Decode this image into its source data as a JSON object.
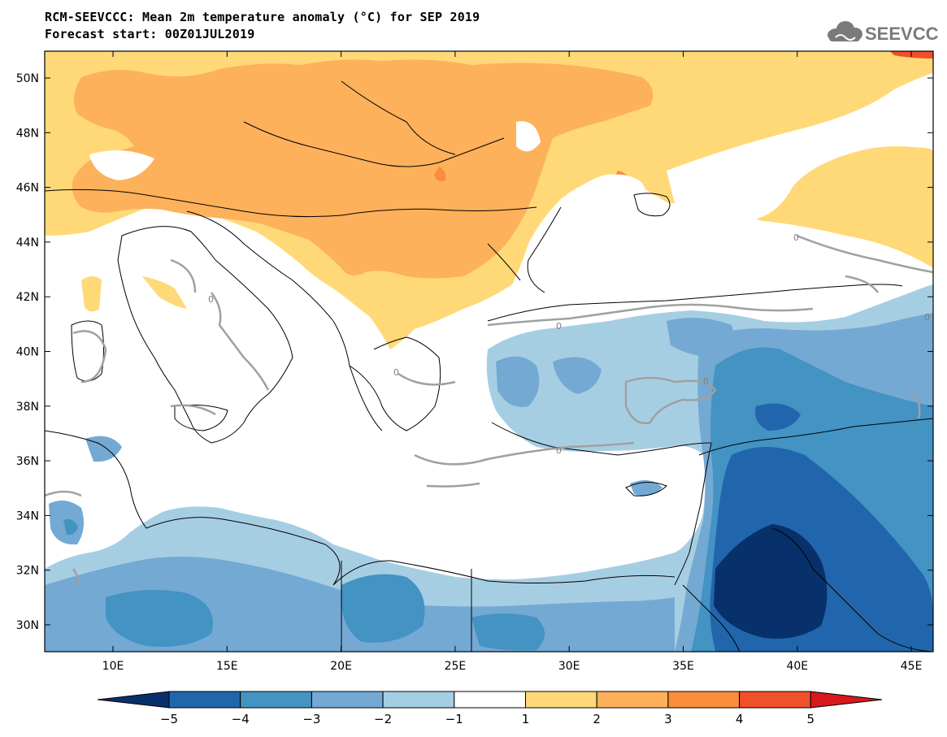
{
  "header": {
    "title": "RCM-SEEVCCC: Mean 2m temperature anomaly (°C) for SEP 2019",
    "subtitle": "Forecast start: 00Z01JUL2019"
  },
  "logo": {
    "text": "SEEVCCC",
    "icon": "cloud-icon"
  },
  "map": {
    "lat_ticks": [
      "50N",
      "48N",
      "46N",
      "44N",
      "42N",
      "40N",
      "38N",
      "36N",
      "34N",
      "32N",
      "30N"
    ],
    "lon_ticks": [
      "10E",
      "15E",
      "20E",
      "25E",
      "30E",
      "35E",
      "40E",
      "45E"
    ],
    "contour_label": "0"
  },
  "legend": {
    "colors": [
      "#08306b",
      "#2166ac",
      "#4393c3",
      "#74a9d4",
      "#a6cee3",
      "#ffffff",
      "#ffd978",
      "#fdb15a",
      "#fb8c3c",
      "#f0502a",
      "#d7191c"
    ],
    "labels": [
      "−5",
      "−4",
      "−3",
      "−2",
      "−1",
      "1",
      "2",
      "3",
      "4",
      "5"
    ]
  },
  "colors": {
    "warm_1": "#ffd978",
    "warm_2": "#fdb15a",
    "warm_3": "#fb8c3c",
    "warm_4": "#f0502a",
    "cool_1": "#a6cee3",
    "cool_2": "#74a9d4",
    "cool_3": "#4393c3",
    "cool_4": "#2166ac",
    "cool_5": "#08306b",
    "zero_contour": "#a0a0a0"
  }
}
